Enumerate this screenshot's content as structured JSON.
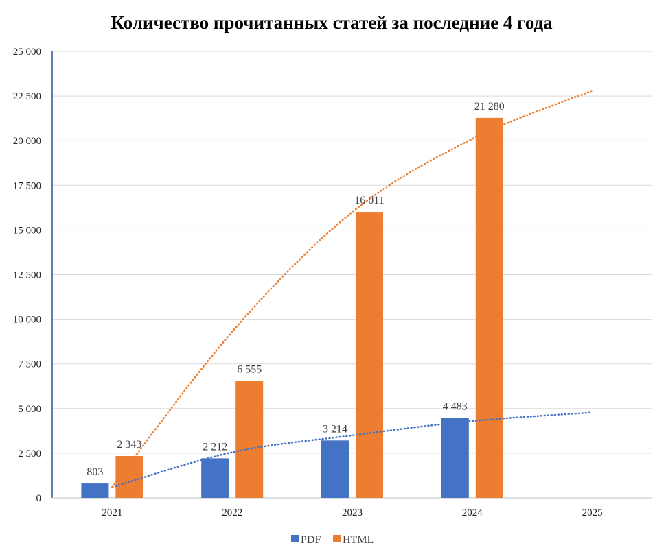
{
  "chart_data": {
    "type": "bar",
    "title": "Количество прочитанных статей за последние 4 года",
    "categories": [
      "2021",
      "2022",
      "2023",
      "2024",
      "2025"
    ],
    "series": [
      {
        "name": "PDF",
        "color": "#4472C4",
        "values": [
          803,
          2212,
          3214,
          4483,
          null
        ],
        "data_labels": [
          "803",
          "2 212",
          "3 214",
          "4 483",
          ""
        ]
      },
      {
        "name": "HTML",
        "color": "#ED7D31",
        "values": [
          2343,
          6555,
          16011,
          21280,
          null
        ],
        "data_labels": [
          "2 343",
          "6 555",
          "16 011",
          "21 280",
          ""
        ]
      }
    ],
    "trendlines": [
      {
        "series": "PDF",
        "type": "logarithmic",
        "style": "dotted",
        "color": "#4472C4",
        "values": [
          600,
          2550,
          3500,
          4300,
          4780
        ]
      },
      {
        "series": "HTML",
        "type": "polynomial",
        "style": "dotted",
        "color": "#ED7D31",
        "values": [
          600,
          9300,
          16000,
          20100,
          22800
        ]
      }
    ],
    "y_ticks": [
      "0",
      "2 500",
      "5 000",
      "7 500",
      "10 000",
      "12 500",
      "15 000",
      "17 500",
      "20 000",
      "22 500",
      "25 000"
    ],
    "ylim": [
      0,
      25000
    ],
    "grid": true,
    "legend": "bottom"
  }
}
